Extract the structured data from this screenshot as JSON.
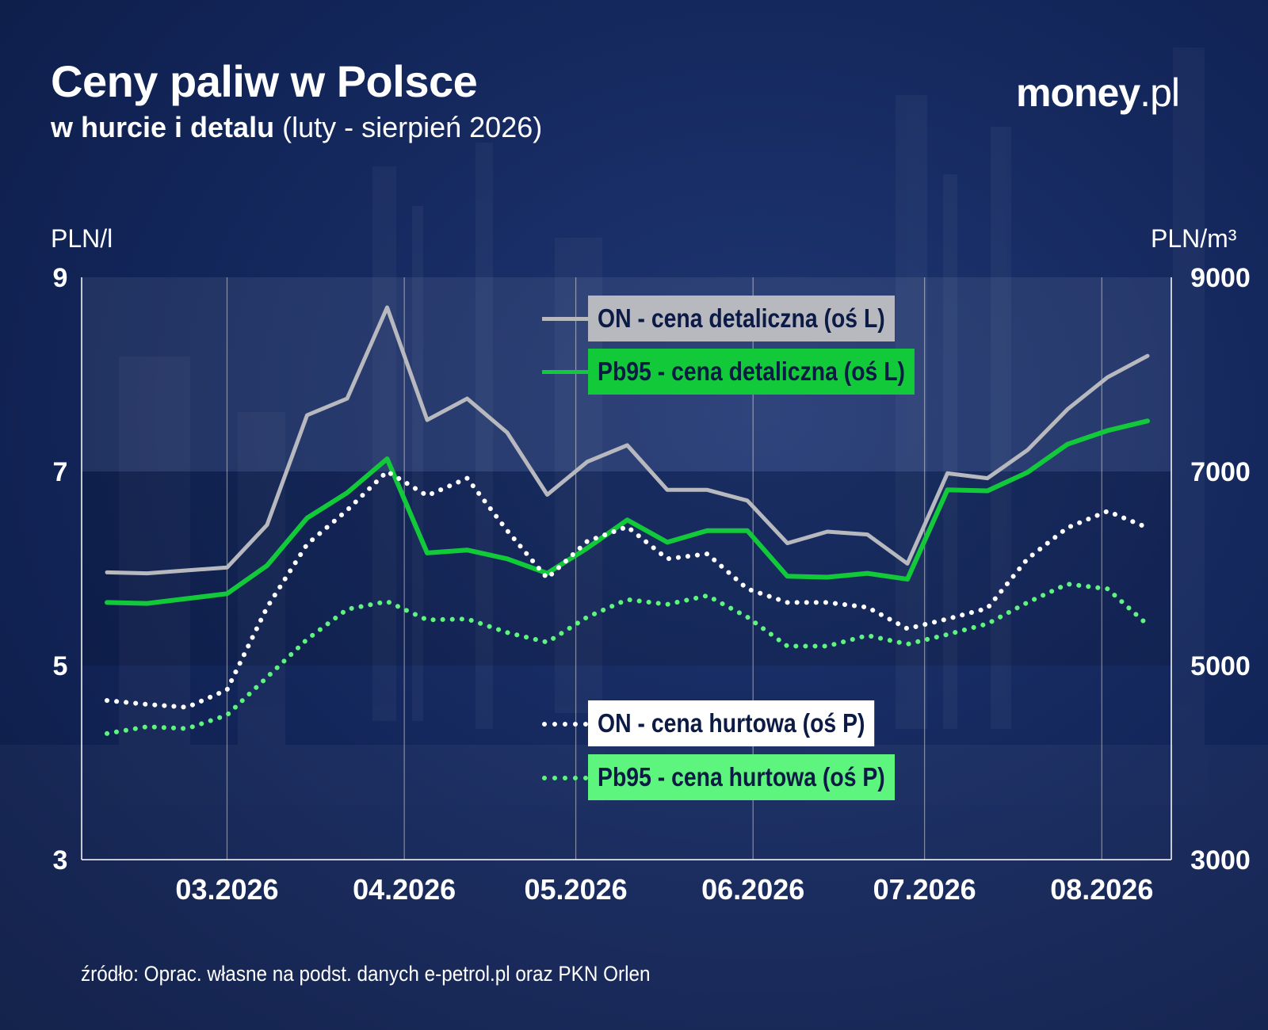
{
  "header": {
    "title": "Ceny paliw w Polsce",
    "subtitle_bold": "w hurcie i detalu",
    "subtitle_light": "(luty - sierpień 2026)"
  },
  "brand": {
    "name": "money",
    "suffix": ".pl"
  },
  "axes": {
    "left_unit": "PLN/l",
    "right_unit": "PLN/m³"
  },
  "source": "źródło: Oprac. własne na podst. danych e-petrol.pl oraz PKN Orlen",
  "colors": {
    "background": "#13265a",
    "on_retail": "#b7b9bf",
    "pb95_retail": "#12c93a",
    "on_wholesale": "#ffffff",
    "pb95_wholesale": "#5ef57e",
    "legend_text_dark": "#0c1b45"
  },
  "chart_data": {
    "type": "line",
    "x_labels": [
      "03.2026",
      "04.2026",
      "05.2026",
      "06.2026",
      "07.2026",
      "08.2026"
    ],
    "left_axis": {
      "unit": "PLN/l",
      "ticks": [
        3,
        5,
        7,
        9
      ],
      "ylim": [
        3,
        9
      ]
    },
    "right_axis": {
      "unit": "PLN/m³",
      "ticks": [
        3000,
        5000,
        7000,
        9000
      ],
      "ylim": [
        3000,
        9000
      ]
    },
    "grid": "vertical lines at months, shaded band between 5 and 7 and 7 and 9",
    "legend": [
      {
        "label": "ON - cena detaliczna (oś L)",
        "style": "solid"
      },
      {
        "label": "Pb95 - cena detaliczna (oś L)",
        "style": "solid"
      },
      {
        "label": "ON - cena hurtowa (oś P)",
        "style": "dotted"
      },
      {
        "label": "Pb95 - cena hurtowa (oś P)",
        "style": "dotted"
      }
    ],
    "x": [
      "2026-02-08",
      "2026-02-15",
      "2026-02-22",
      "2026-03-01",
      "2026-03-08",
      "2026-03-15",
      "2026-03-22",
      "2026-03-29",
      "2026-04-05",
      "2026-04-12",
      "2026-04-19",
      "2026-04-26",
      "2026-05-03",
      "2026-05-10",
      "2026-05-17",
      "2026-05-24",
      "2026-05-31",
      "2026-06-07",
      "2026-06-14",
      "2026-06-21",
      "2026-06-28",
      "2026-07-05",
      "2026-07-12",
      "2026-07-19",
      "2026-07-26",
      "2026-08-02",
      "2026-08-09"
    ],
    "series": [
      {
        "name": "ON - cena detaliczna (oś L)",
        "axis": "left",
        "values": [
          5.96,
          5.95,
          5.98,
          6.01,
          6.45,
          7.58,
          7.75,
          8.69,
          7.53,
          7.75,
          7.4,
          6.76,
          7.1,
          7.27,
          6.81,
          6.81,
          6.7,
          6.26,
          6.38,
          6.35,
          6.05,
          6.98,
          6.93,
          7.22,
          7.64,
          7.97,
          8.19
        ]
      },
      {
        "name": "Pb95 - cena detaliczna (oś L)",
        "axis": "left",
        "values": [
          5.65,
          5.64,
          5.69,
          5.74,
          6.03,
          6.52,
          6.78,
          7.13,
          6.16,
          6.19,
          6.1,
          5.95,
          6.21,
          6.5,
          6.27,
          6.39,
          6.39,
          5.92,
          5.91,
          5.95,
          5.89,
          6.81,
          6.8,
          6.99,
          7.28,
          7.42,
          7.52
        ]
      },
      {
        "name": "ON - cena hurtowa (oś P)",
        "axis": "right",
        "values": [
          4640,
          4600,
          4570,
          4750,
          5600,
          6250,
          6600,
          7000,
          6750,
          6930,
          6390,
          5900,
          6280,
          6430,
          6100,
          6150,
          5790,
          5650,
          5650,
          5600,
          5380,
          5480,
          5590,
          6100,
          6420,
          6590,
          6420
        ]
      },
      {
        "name": "Pb95 - cena hurtowa (oś P)",
        "axis": "right",
        "values": [
          4300,
          4370,
          4350,
          4490,
          4880,
          5270,
          5580,
          5660,
          5470,
          5480,
          5340,
          5240,
          5500,
          5680,
          5630,
          5720,
          5500,
          5200,
          5200,
          5310,
          5220,
          5320,
          5430,
          5650,
          5840,
          5790,
          5420
        ]
      }
    ]
  }
}
